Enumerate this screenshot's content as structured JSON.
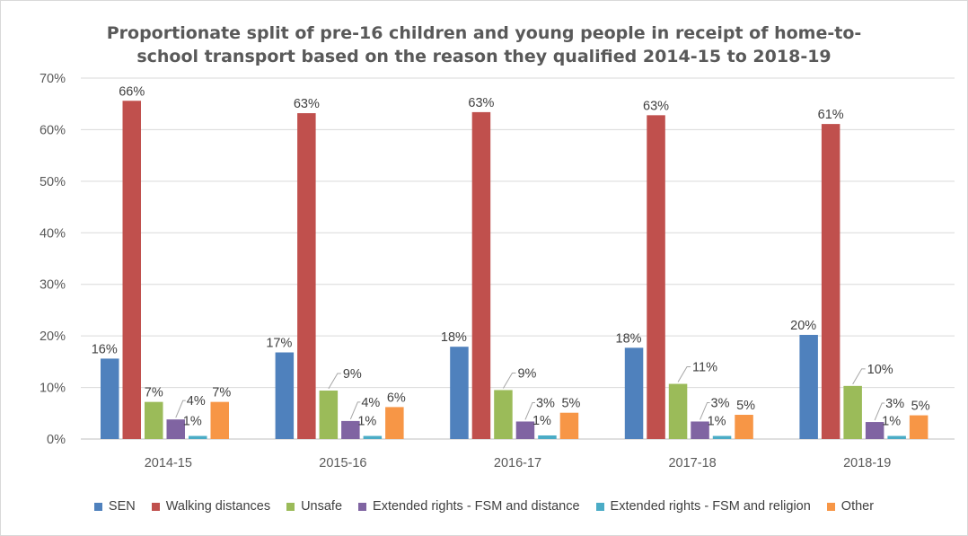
{
  "chart_data": {
    "type": "bar",
    "title_line1": "Proportionate split of pre-16 children and young people in receipt of home-to-",
    "title_line2": "school transport based on the reason they qualified 2014-15 to 2018-19",
    "categories": [
      "2014-15",
      "2015-16",
      "2016-17",
      "2017-18",
      "2018-19"
    ],
    "y_ticks": [
      "0%",
      "10%",
      "20%",
      "30%",
      "40%",
      "50%",
      "60%",
      "70%"
    ],
    "ylim": [
      0,
      70
    ],
    "grid": true,
    "legend_position": "bottom",
    "series": [
      {
        "name": "SEN",
        "color": "#4f81bd",
        "values": [
          15.6,
          16.8,
          17.9,
          17.7,
          20.2
        ],
        "labels": [
          "16%",
          "17%",
          "18%",
          "18%",
          "20%"
        ]
      },
      {
        "name": "Walking distances",
        "color": "#c0504d",
        "values": [
          65.6,
          63.2,
          63.4,
          62.8,
          61.1
        ],
        "labels": [
          "66%",
          "63%",
          "63%",
          "63%",
          "61%"
        ]
      },
      {
        "name": "Unsafe",
        "color": "#9bbb59",
        "values": [
          7.2,
          9.4,
          9.5,
          10.7,
          10.3
        ],
        "labels": [
          "7%",
          "9%",
          "9%",
          "11%",
          "10%"
        ]
      },
      {
        "name": "Extended rights - FSM and distance",
        "color": "#8064a2",
        "values": [
          3.8,
          3.5,
          3.4,
          3.4,
          3.3
        ],
        "labels": [
          "4%",
          "4%",
          "3%",
          "3%",
          "3%"
        ]
      },
      {
        "name": "Extended rights - FSM and religion",
        "color": "#4bacc6",
        "values": [
          0.6,
          0.6,
          0.7,
          0.6,
          0.6
        ],
        "labels": [
          "1%",
          "1%",
          "1%",
          "1%",
          "1%"
        ]
      },
      {
        "name": "Other",
        "color": "#f79646",
        "values": [
          7.2,
          6.2,
          5.1,
          4.7,
          4.6
        ],
        "labels": [
          "7%",
          "6%",
          "5%",
          "5%",
          "5%"
        ]
      }
    ]
  }
}
